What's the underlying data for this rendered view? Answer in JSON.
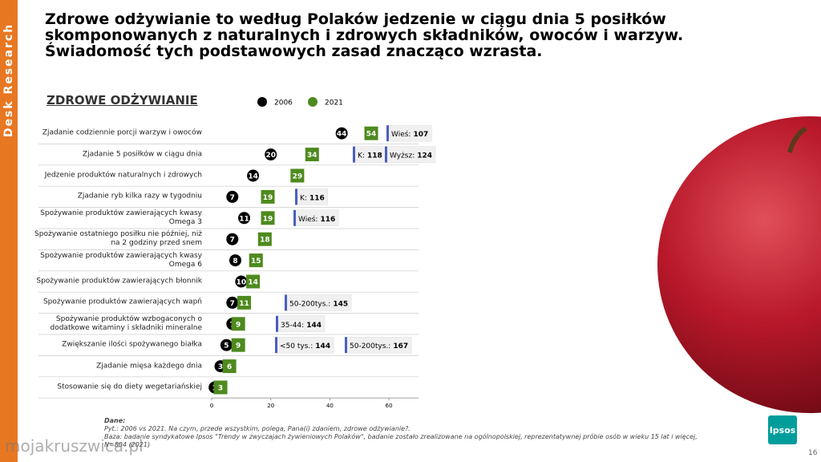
{
  "side_label": "Desk Research",
  "title": "Zdrowe odżywianie to według Polaków jedzenie w ciągu dnia 5 posiłków skomponowanych z naturalnych i zdrowych składników, owoców i warzyw. Świadomość tych podstawowych zasad znacząco wzrasta.",
  "chart_data": {
    "type": "dot",
    "title": "ZDROWE ODŻYWIANIE",
    "categories": [
      "Zjadanie codziennie porcji warzyw i owoców",
      "Zjadanie 5 posiłków w ciągu dnia",
      "Jedzenie produktów naturalnych i zdrowych",
      "Zjadanie ryb kilka razy w tygodniu",
      "Spożywanie produktów zawierających kwasy Omega 3",
      "Spożywanie ostatniego posiłku nie później, niż na 2 godziny przed snem",
      "Spożywanie produktów zawierających kwasy Omega 6",
      "Spożywanie produktów zawierających błonnik",
      "Spożywanie produktów zawierających wapń",
      "Spożywanie produktów wzbogaconych o dodatkowe witaminy i składniki mineralne",
      "Zwiększanie ilości spożywanego białka",
      "Zjadanie mięsa każdego dnia",
      "Stosowanie się do diety wegetariańskiej"
    ],
    "series": [
      {
        "name": "2006",
        "color": "#000000",
        "values": [
          44,
          20,
          14,
          7,
          11,
          7,
          8,
          10,
          7,
          7,
          5,
          3,
          1
        ]
      },
      {
        "name": "2021",
        "color": "#4e8a1e",
        "values": [
          54,
          34,
          29,
          19,
          19,
          18,
          15,
          14,
          11,
          9,
          9,
          6,
          3
        ]
      }
    ],
    "annotations": [
      [
        {
          "label": "Wieś:",
          "value": 107
        }
      ],
      [
        {
          "label": "K:",
          "value": 118
        },
        {
          "label": "Wyższ:",
          "value": 124
        }
      ],
      [],
      [
        {
          "label": "K:",
          "value": 116
        }
      ],
      [
        {
          "label": "Wieś:",
          "value": 116
        }
      ],
      [],
      [],
      [],
      [
        {
          "label": "50-200tys.:",
          "value": 145
        }
      ],
      [
        {
          "label": "35-44:",
          "value": 144
        }
      ],
      [
        {
          "label": "<50 tys.:",
          "value": 144
        },
        {
          "label": "50-200tys.:",
          "value": 167
        }
      ],
      [],
      []
    ],
    "xlim": [
      0,
      70
    ],
    "xticks": [
      0,
      20,
      40,
      60
    ]
  },
  "footer": [
    "Dane:",
    "Pyt.: 2006 vs 2021. Na czym, przede wszystkim, polega, Pana(i) zdaniem, zdrowe odżywianie?.",
    "Baza: badanie syndykatowe Ipsos \"Trendy w zwyczajach żywieniowych Polaków\", badanie zostało zrealizowane na ogólnopolskiej, reprezentatywnej próbie osób w wieku 15 lat i więcej,",
    "N=804 (2021)"
  ],
  "logo": "Ipsos",
  "page_number": "16",
  "watermark": "mojakruszwica.pl"
}
